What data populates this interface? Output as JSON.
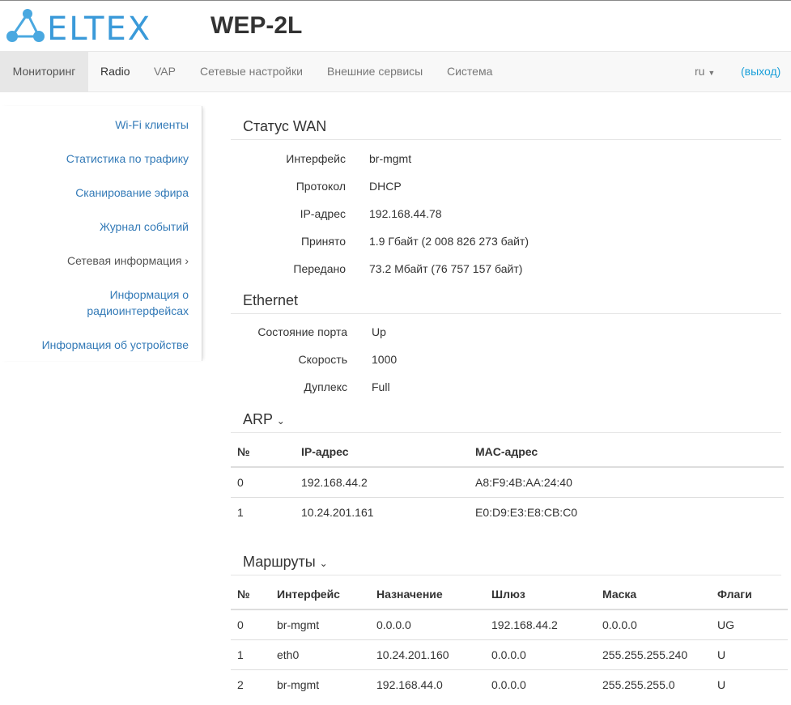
{
  "header": {
    "logo_text": "ELTEX",
    "model": "WEP-2L"
  },
  "nav": {
    "tabs": [
      "Мониторинг",
      "Radio",
      "VAP",
      "Сетевые настройки",
      "Внешние сервисы",
      "Система"
    ],
    "lang": "ru",
    "logout": "(выход)"
  },
  "sidebar": {
    "items": [
      "Wi-Fi клиенты",
      "Статистика по трафику",
      "Сканирование эфира",
      "Журнал событий",
      "Сетевая информация",
      "Информация о радиоинтерфейсах",
      "Информация об устройстве"
    ]
  },
  "wan": {
    "title": "Статус WAN",
    "rows": [
      {
        "label": "Интерфейс",
        "value": "br-mgmt"
      },
      {
        "label": "Протокол",
        "value": "DHCP"
      },
      {
        "label": "IP-адрес",
        "value": "192.168.44.78"
      },
      {
        "label": "Принято",
        "value": "1.9 Гбайт (2 008 826 273 байт)"
      },
      {
        "label": "Передано",
        "value": "73.2 Мбайт (76 757 157 байт)"
      }
    ]
  },
  "ethernet": {
    "title": "Ethernet",
    "rows": [
      {
        "label": "Состояние порта",
        "value": "Up"
      },
      {
        "label": "Скорость",
        "value": "1000"
      },
      {
        "label": "Дуплекс",
        "value": "Full"
      }
    ]
  },
  "arp": {
    "title": "ARP",
    "headers": [
      "№",
      "IP-адрес",
      "MAC-адрес"
    ],
    "rows": [
      [
        "0",
        "192.168.44.2",
        "A8:F9:4B:AA:24:40"
      ],
      [
        "1",
        "10.24.201.161",
        "E0:D9:E3:E8:CB:C0"
      ]
    ]
  },
  "routes": {
    "title": "Маршруты",
    "headers": [
      "№",
      "Интерфейс",
      "Назначение",
      "Шлюз",
      "Маска",
      "Флаги"
    ],
    "rows": [
      [
        "0",
        "br-mgmt",
        "0.0.0.0",
        "192.168.44.2",
        "0.0.0.0",
        "UG"
      ],
      [
        "1",
        "eth0",
        "10.24.201.160",
        "0.0.0.0",
        "255.255.255.240",
        "U"
      ],
      [
        "2",
        "br-mgmt",
        "192.168.44.0",
        "0.0.0.0",
        "255.255.255.0",
        "U"
      ]
    ]
  },
  "colors": {
    "brand": "#3a9ad9",
    "link": "#337ab7"
  }
}
